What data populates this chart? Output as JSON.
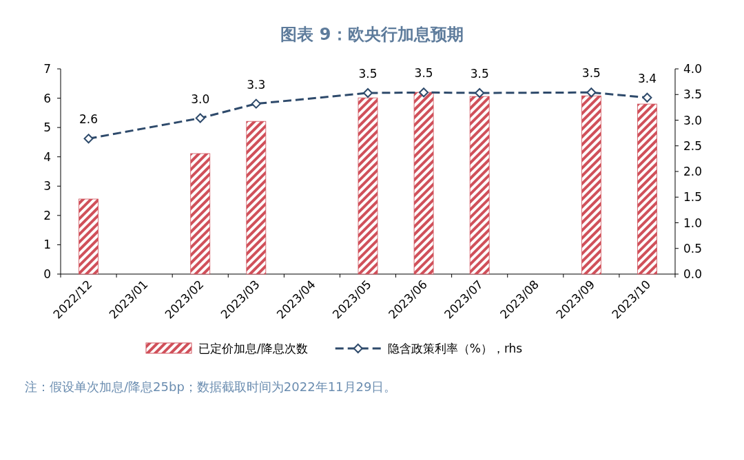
{
  "chart_data": {
    "type": "bar",
    "title": "图表 9：欧央行加息预期",
    "categories": [
      "2022/12",
      "2023/01",
      "2023/02",
      "2023/03",
      "2023/04",
      "2023/05",
      "2023/06",
      "2023/07",
      "2023/08",
      "2023/09",
      "2023/10"
    ],
    "series": [
      {
        "name": "已定价加息/降息次数",
        "color": "#d0505a",
        "values": [
          2.56,
          null,
          4.11,
          5.21,
          null,
          6.01,
          6.2,
          6.06,
          null,
          6.08,
          5.8
        ]
      },
      {
        "name": "隐含政策利率（%），rhs",
        "type": "line",
        "axis": "y2",
        "color": "#2e4a6b",
        "line_style": "dashed",
        "marker": "diamond",
        "x": [
          "2022/12",
          "2023/02",
          "2023/03",
          "2023/05",
          "2023/06",
          "2023/07",
          "2023/09",
          "2023/10"
        ],
        "values": [
          2.64,
          3.04,
          3.32,
          3.53,
          3.54,
          3.53,
          3.54,
          3.44
        ],
        "value_labels": [
          "2.6",
          "3.0",
          "3.3",
          "3.5",
          "3.5",
          "3.5",
          "3.5",
          "3.4"
        ]
      }
    ],
    "ylim": [
      0,
      7
    ],
    "yticks": [
      0,
      1,
      2,
      3,
      4,
      5,
      6,
      7
    ],
    "y2lim": [
      0,
      4
    ],
    "y2ticks": [
      {
        "value": 0,
        "label": "0.0"
      },
      {
        "value": 0.5,
        "label": "0.5"
      },
      {
        "value": 1,
        "label": "1.0"
      },
      {
        "value": 1.5,
        "label": "1.5"
      },
      {
        "value": 2,
        "label": "2.0"
      },
      {
        "value": 2.5,
        "label": "2.5"
      },
      {
        "value": 3,
        "label": "3.0"
      },
      {
        "value": 3.5,
        "label": "3.5"
      },
      {
        "value": 4,
        "label": "4.0"
      }
    ],
    "grid": false,
    "legend": "bottom",
    "annotations": [
      "注：假设单次加息/降息25bp；数据截取时间为2022年11月29日。"
    ]
  }
}
